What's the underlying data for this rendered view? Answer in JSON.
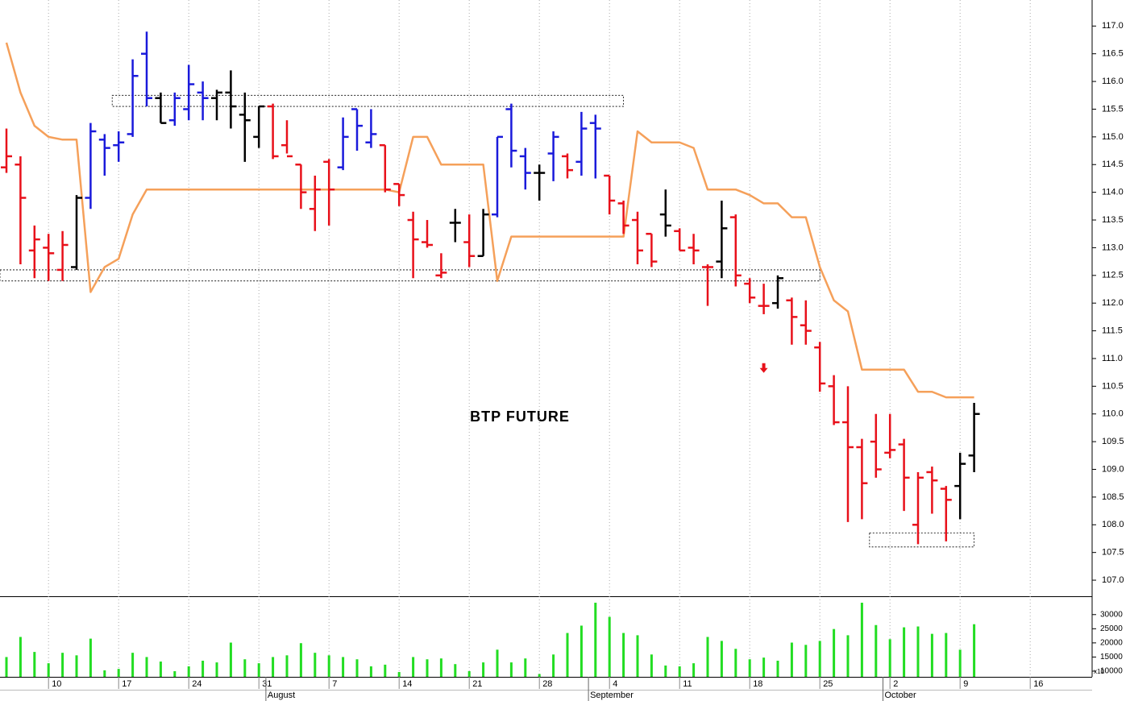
{
  "chart_data": {
    "type": "ohlc",
    "title": "BTP FUTURE",
    "categories": [
      null,
      null,
      null,
      "10",
      null,
      null,
      null,
      null,
      "17",
      null,
      null,
      null,
      null,
      "24",
      null,
      null,
      null,
      null,
      "31",
      null,
      null,
      null,
      null,
      "7",
      null,
      null,
      null,
      null,
      "14",
      null,
      null,
      null,
      null,
      "21",
      null,
      null,
      null,
      null,
      "28",
      null,
      null,
      null,
      null,
      "4",
      null,
      null,
      null,
      null,
      "11",
      null,
      null,
      null,
      null,
      "18",
      null,
      null,
      null,
      null,
      "25",
      null,
      null,
      null,
      null,
      "2",
      null,
      null,
      null,
      null,
      "9",
      null,
      null,
      null,
      null,
      "16"
    ],
    "month_labels": [
      {
        "index": 19,
        "label": "August"
      },
      {
        "index": 42,
        "label": "September"
      },
      {
        "index": 63,
        "label": "October"
      }
    ],
    "open": [
      114.45,
      114.5,
      112.95,
      113.0,
      112.6,
      112.65,
      113.9,
      114.95,
      114.85,
      115.05,
      116.5,
      115.7,
      115.3,
      115.5,
      115.8,
      115.7,
      115.8,
      115.4,
      115.0,
      115.55,
      114.85,
      114.5,
      113.7,
      114.55,
      114.45,
      115.5,
      114.9,
      114.85,
      114.15,
      113.5,
      113.1,
      112.5,
      113.45,
      113.1,
      112.85,
      113.6,
      115.5,
      114.65,
      114.35,
      114.7,
      114.65,
      114.55,
      115.25,
      114.3,
      113.8,
      113.5,
      113.25,
      113.6,
      113.3,
      113.0,
      112.65,
      112.75,
      113.55,
      112.35,
      111.95,
      112.0,
      112.05,
      111.6,
      111.2,
      110.5,
      109.85,
      109.4,
      109.5,
      109.3,
      109.45,
      108.0,
      108.95,
      108.65,
      108.7,
      109.25,
      null,
      null,
      null,
      null
    ],
    "high": [
      115.15,
      114.65,
      113.4,
      113.25,
      113.3,
      113.95,
      115.25,
      115.05,
      115.1,
      116.4,
      116.9,
      115.8,
      115.8,
      116.3,
      116.0,
      115.85,
      116.2,
      115.8,
      115.55,
      115.6,
      115.3,
      114.5,
      114.3,
      114.6,
      115.35,
      115.5,
      115.5,
      114.85,
      114.15,
      113.65,
      113.5,
      112.9,
      113.7,
      113.6,
      113.7,
      115.0,
      115.6,
      114.8,
      114.5,
      115.1,
      114.7,
      115.45,
      115.4,
      114.3,
      113.85,
      113.65,
      113.25,
      114.05,
      113.35,
      113.25,
      112.7,
      113.85,
      113.6,
      112.45,
      112.35,
      112.5,
      112.1,
      112.05,
      111.3,
      110.7,
      110.5,
      109.55,
      110.0,
      110.0,
      109.55,
      108.95,
      109.05,
      108.7,
      109.3,
      110.2,
      null,
      null,
      null,
      null
    ],
    "low": [
      114.35,
      112.7,
      112.45,
      112.4,
      112.4,
      112.6,
      113.7,
      114.3,
      114.55,
      115.0,
      115.55,
      115.25,
      115.2,
      115.3,
      115.3,
      115.3,
      115.15,
      114.55,
      114.8,
      114.6,
      114.7,
      113.7,
      113.3,
      113.4,
      114.4,
      114.75,
      114.8,
      114.0,
      113.75,
      112.45,
      113.0,
      112.45,
      113.1,
      112.65,
      112.85,
      113.55,
      114.45,
      114.05,
      113.85,
      114.2,
      114.25,
      114.3,
      114.25,
      113.6,
      113.25,
      112.7,
      112.65,
      113.2,
      112.95,
      112.7,
      111.95,
      112.45,
      112.3,
      112.0,
      111.8,
      111.9,
      111.25,
      111.25,
      110.4,
      109.8,
      108.05,
      108.1,
      108.85,
      109.2,
      108.25,
      107.65,
      108.2,
      107.7,
      108.1,
      108.95,
      null,
      null,
      null,
      null
    ],
    "close": [
      114.65,
      113.9,
      113.15,
      112.9,
      113.05,
      113.9,
      115.1,
      114.8,
      114.9,
      116.1,
      115.7,
      115.25,
      115.7,
      115.95,
      115.7,
      115.8,
      115.55,
      115.3,
      115.55,
      114.65,
      114.65,
      114.0,
      114.05,
      114.05,
      115.0,
      115.2,
      115.05,
      114.05,
      113.95,
      113.15,
      113.05,
      112.55,
      113.45,
      112.85,
      113.6,
      115.0,
      114.75,
      114.35,
      114.35,
      115.0,
      114.4,
      115.15,
      115.15,
      113.85,
      113.4,
      112.95,
      112.75,
      113.4,
      112.95,
      112.95,
      112.65,
      113.35,
      112.5,
      112.1,
      111.95,
      112.45,
      111.75,
      111.5,
      110.55,
      109.85,
      109.4,
      108.75,
      109.0,
      109.35,
      108.85,
      108.85,
      108.8,
      108.45,
      109.1,
      110.0,
      null,
      null,
      null,
      null
    ],
    "bar_colors": [
      "#e8101a",
      "#e8101a",
      "#e8101a",
      "#e8101a",
      "#e8101a",
      "#000000",
      "#1a1adb",
      "#1a1adb",
      "#1a1adb",
      "#1a1adb",
      "#1a1adb",
      "#000000",
      "#1a1adb",
      "#1a1adb",
      "#1a1adb",
      "#000000",
      "#000000",
      "#000000",
      "#000000",
      "#e8101a",
      "#e8101a",
      "#e8101a",
      "#e8101a",
      "#e8101a",
      "#1a1adb",
      "#1a1adb",
      "#1a1adb",
      "#e8101a",
      "#e8101a",
      "#e8101a",
      "#e8101a",
      "#e8101a",
      "#000000",
      "#e8101a",
      "#000000",
      "#1a1adb",
      "#1a1adb",
      "#1a1adb",
      "#000000",
      "#1a1adb",
      "#e8101a",
      "#1a1adb",
      "#1a1adb",
      "#e8101a",
      "#e8101a",
      "#e8101a",
      "#e8101a",
      "#000000",
      "#e8101a",
      "#e8101a",
      "#e8101a",
      "#000000",
      "#e8101a",
      "#e8101a",
      "#e8101a",
      "#000000",
      "#e8101a",
      "#e8101a",
      "#e8101a",
      "#e8101a",
      "#e8101a",
      "#e8101a",
      "#e8101a",
      "#e8101a",
      "#e8101a",
      "#e8101a",
      "#e8101a",
      "#e8101a",
      "#000000",
      "#000000",
      null,
      null,
      null,
      null
    ],
    "line": {
      "color": "#f5a05a",
      "values": [
        116.7,
        115.8,
        115.2,
        115.0,
        114.95,
        114.95,
        112.2,
        112.65,
        112.8,
        113.6,
        114.05,
        114.05,
        114.05,
        114.05,
        114.05,
        114.05,
        114.05,
        114.05,
        114.05,
        114.05,
        114.05,
        114.05,
        114.05,
        114.05,
        114.05,
        114.05,
        114.05,
        114.05,
        114.0,
        115.0,
        115.0,
        114.5,
        114.5,
        114.5,
        114.5,
        112.4,
        113.2,
        113.2,
        113.2,
        113.2,
        113.2,
        113.2,
        113.2,
        113.2,
        113.2,
        115.1,
        114.9,
        114.9,
        114.9,
        114.8,
        114.05,
        114.05,
        114.05,
        113.95,
        113.8,
        113.8,
        113.55,
        113.55,
        112.65,
        112.05,
        111.85,
        110.8,
        110.8,
        110.8,
        110.8,
        110.4,
        110.4,
        110.3,
        110.3,
        110.3,
        null,
        null,
        null,
        null
      ]
    },
    "zones": [
      {
        "from": 8,
        "to": 44,
        "low": 115.55,
        "high": 115.75
      },
      {
        "from": 0,
        "to": 58,
        "low": 112.4,
        "high": 112.6
      },
      {
        "from": 62,
        "to": 69,
        "low": 107.6,
        "high": 107.85
      }
    ],
    "signals": [
      {
        "index": 54,
        "value": 110.8,
        "color": "#e8101a"
      }
    ],
    "ylim": [
      106.71,
      117.47
    ],
    "yticks": [
      {
        "value": 107,
        "label": "107.0"
      },
      107.5,
      {
        "value": 108,
        "label": "108.0"
      },
      108.5,
      {
        "value": 109,
        "label": "109.0"
      },
      109.5,
      {
        "value": 110,
        "label": "110.0"
      },
      110.5,
      {
        "value": 111,
        "label": "111.0"
      },
      111.5,
      {
        "value": 112,
        "label": "112.0"
      },
      112.5,
      {
        "value": 113,
        "label": "113.0"
      },
      113.5,
      {
        "value": 114,
        "label": "114.0"
      },
      114.5,
      {
        "value": 115,
        "label": "115.0"
      },
      115.5,
      {
        "value": 116,
        "label": "116.0"
      },
      116.5,
      {
        "value": 117,
        "label": "117.0"
      }
    ],
    "grid": true,
    "volume": {
      "color": "#22dd22",
      "unit_label": "x10",
      "values": [
        15000,
        22100,
        16800,
        12800,
        16500,
        15600,
        21500,
        10300,
        10800,
        16500,
        15000,
        13400,
        10000,
        11700,
        13700,
        13100,
        20100,
        14200,
        12800,
        15000,
        15600,
        19900,
        16500,
        15600,
        15000,
        14200,
        11700,
        12300,
        9700,
        15000,
        14200,
        14500,
        12500,
        10000,
        13100,
        17600,
        13100,
        14500,
        9000,
        15900,
        23500,
        26100,
        34200,
        29200,
        23500,
        22700,
        15900,
        12000,
        11700,
        12800,
        22100,
        20700,
        17900,
        14200,
        14800,
        13700,
        20100,
        19300,
        20700,
        24900,
        22700,
        34200,
        26300,
        21300,
        25500,
        25800,
        23200,
        23500,
        17600,
        26600,
        null,
        null,
        null,
        null
      ],
      "ylim": [
        8000,
        36200
      ],
      "yticks": [
        10000,
        15000,
        20000,
        25000,
        30000
      ]
    }
  }
}
